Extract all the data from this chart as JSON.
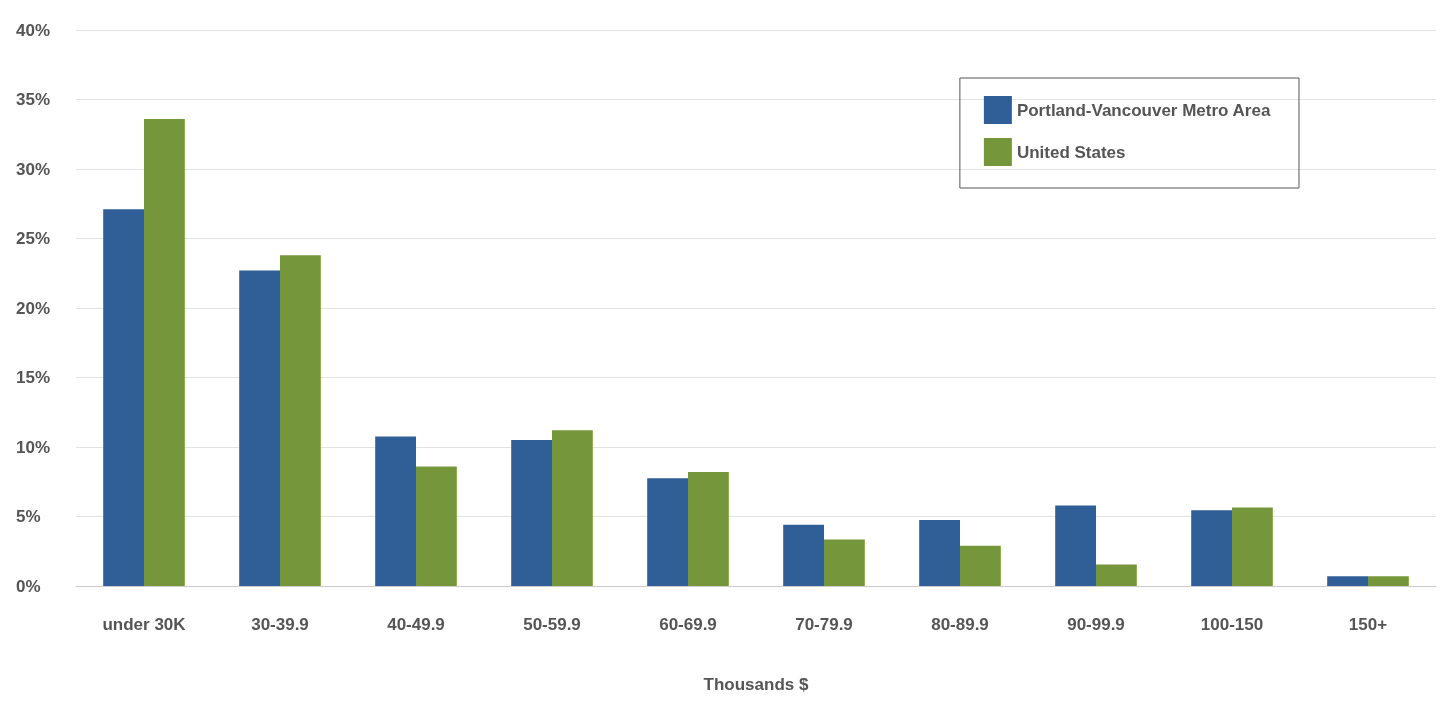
{
  "chart_data": {
    "type": "bar",
    "xlabel": "Thousands $",
    "categories": [
      "under 30K",
      "30-39.9",
      "40-49.9",
      "50-59.9",
      "60-69.9",
      "70-79.9",
      "80-89.9",
      "90-99.9",
      "100-150",
      "150+"
    ],
    "series": [
      {
        "name": "Portland-Vancouver Metro Area",
        "color": "#2f5f96",
        "values": [
          27.1,
          22.7,
          10.75,
          10.5,
          7.75,
          4.4,
          4.75,
          5.8,
          5.45,
          0.7
        ]
      },
      {
        "name": "United States",
        "color": "#76963c",
        "values": [
          33.6,
          23.8,
          8.6,
          11.2,
          8.2,
          3.35,
          2.9,
          1.55,
          5.65,
          0.7
        ]
      }
    ],
    "ylim": [
      0,
      40
    ],
    "yticks": [
      {
        "value": 0,
        "label": "0%"
      },
      {
        "value": 5,
        "label": "5%"
      },
      {
        "value": 10,
        "label": "10%"
      },
      {
        "value": 15,
        "label": "15%"
      },
      {
        "value": 20,
        "label": "20%"
      },
      {
        "value": 25,
        "label": "25%"
      },
      {
        "value": 30,
        "label": "30%"
      },
      {
        "value": 35,
        "label": "35%"
      },
      {
        "value": 40,
        "label": "40%"
      }
    ],
    "grid": "y",
    "legend": "top right"
  }
}
